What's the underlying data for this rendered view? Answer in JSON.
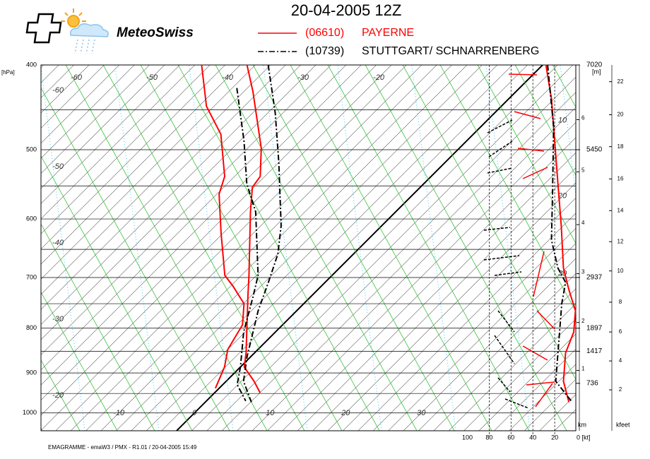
{
  "logo": "MeteoSwiss",
  "footer": "EMAGRAMME - emaW3  /  PMX - R1.01  /  20-04-2005  15:49",
  "chart_data": {
    "type": "emagram",
    "title": "20-04-2005  12Z",
    "y_unit": "[hPa]",
    "ylim": [
      400,
      1048
    ],
    "yticks": [
      400,
      500,
      600,
      700,
      800,
      900,
      1000
    ],
    "isobars": [
      450,
      550,
      650,
      750,
      850,
      950
    ],
    "xticks": [
      -10,
      0,
      10,
      20,
      30
    ],
    "top_xticks": [
      -60,
      -50,
      -40,
      -30,
      -20
    ],
    "left_labels": [
      -60,
      -50,
      -40,
      -30,
      -20
    ],
    "mixing_labels": [
      {
        "value": 10,
        "pressure": 463
      },
      {
        "value": 20,
        "pressure": 565
      },
      {
        "value": 30,
        "pressure": 693
      }
    ],
    "height_unit": "[m]",
    "height_labels": [
      {
        "pressure": 400,
        "height": 7020
      },
      {
        "pressure": 500,
        "height": 5450
      },
      {
        "pressure": 700,
        "height": 2937
      },
      {
        "pressure": 800,
        "height": 1897
      },
      {
        "pressure": 850,
        "height": 1417
      },
      {
        "pressure": 925,
        "height": 736
      }
    ],
    "km_unit": "km",
    "km_ticks": [
      {
        "km": 1,
        "pressure": 894
      },
      {
        "km": 2,
        "pressure": 788
      },
      {
        "km": 3,
        "pressure": 693
      },
      {
        "km": 4,
        "pressure": 609
      },
      {
        "km": 5,
        "pressure": 530
      },
      {
        "km": 6,
        "pressure": 462
      }
    ],
    "kfeet_unit": "kfeet",
    "kfeet_ticks": [
      {
        "kfeet": 2,
        "pressure": 941
      },
      {
        "kfeet": 4,
        "pressure": 872
      },
      {
        "kfeet": 6,
        "pressure": 808
      },
      {
        "kfeet": 8,
        "pressure": 747
      },
      {
        "kfeet": 10,
        "pressure": 688
      },
      {
        "kfeet": 12,
        "pressure": 637
      },
      {
        "kfeet": 14,
        "pressure": 587
      },
      {
        "kfeet": 16,
        "pressure": 540
      },
      {
        "kfeet": 18,
        "pressure": 496
      },
      {
        "kfeet": 20,
        "pressure": 456
      },
      {
        "kfeet": 22,
        "pressure": 418
      }
    ],
    "wind_ticks": [
      100,
      80,
      60,
      40,
      20,
      {
        "value": 0,
        "label": "0 [kt]"
      }
    ],
    "series": [
      {
        "id": "(06610)",
        "name": "PAYERNE",
        "color": "#ff0000",
        "style": "solid",
        "temperature": {
          "p": [
            400,
            429,
            498,
            536.5,
            552,
            589,
            696,
            735,
            854,
            886,
            920,
            948
          ],
          "t": [
            -39.1,
            -34.8,
            -26.2,
            -22.6,
            -22.2,
            -19.2,
            -11.0,
            -8.4,
            -1.1,
            0.5,
            3.7,
            6.0
          ]
        },
        "dewpoint": {
          "p": [
            400,
            446,
            480,
            536.5,
            562,
            622.5,
            696,
            716,
            750,
            793,
            846,
            886,
            937
          ],
          "t": [
            -45.1,
            -39.0,
            -33.4,
            -27.3,
            -25.7,
            -20.3,
            -14.2,
            -11.7,
            -7.9,
            -5.3,
            -4.0,
            -2.1,
            -0.5
          ]
        },
        "wind": {
          "p": [
            400,
            437,
            489,
            547,
            611,
            683,
            723,
            764,
            808,
            854,
            920,
            972
          ],
          "s": [
            28,
            23,
            20,
            17,
            14,
            12,
            7,
            1,
            2.5,
            10,
            12,
            7
          ]
        }
      },
      {
        "id": "(10739)",
        "name": "STUTTGART/ SCHNARRENBERG",
        "color": "#000000",
        "style": "dashdot",
        "temperature": {
          "p": [
            400,
            454,
            517,
            611,
            658,
            709,
            764,
            862,
            920,
            972
          ],
          "t": [
            -36.3,
            -29.0,
            -22.0,
            -13.3,
            -10.0,
            -7.5,
            -5.1,
            -0.5,
            2.3,
            6.1
          ]
        },
        "dewpoint": {
          "p": [
            425,
            489,
            547,
            589,
            696,
            735,
            808,
            886,
            928,
            969
          ],
          "t": [
            -37.4,
            -29.4,
            -23.4,
            -18.5,
            -9.8,
            -7.7,
            -4.2,
            0,
            1.9,
            5.2
          ]
        },
        "wind": {
          "p": [
            400,
            471,
            565,
            634,
            683,
            709,
            750,
            854,
            920,
            972
          ],
          "s": [
            26.5,
            21,
            22,
            23,
            17,
            10,
            13.5,
            17,
            19,
            4
          ]
        }
      }
    ]
  }
}
